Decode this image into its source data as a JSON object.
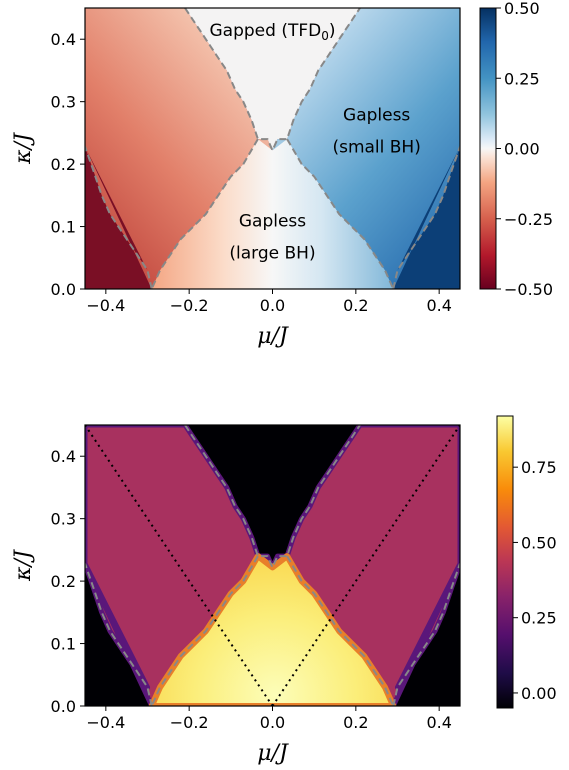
{
  "chart_data": [
    {
      "type": "heatmap",
      "xlabel": "μ/J",
      "ylabel": "κ/J",
      "xlim": [
        -0.45,
        0.45
      ],
      "ylim": [
        0,
        0.45
      ],
      "xticks": [
        -0.4,
        -0.2,
        0.0,
        0.2,
        0.4
      ],
      "xtick_labels": [
        "−0.4",
        "−0.2",
        "0.0",
        "0.2",
        "0.4"
      ],
      "yticks": [
        0.0,
        0.1,
        0.2,
        0.3,
        0.4
      ],
      "ytick_labels": [
        "0.0",
        "0.1",
        "0.2",
        "0.3",
        "0.4"
      ],
      "colormap": "RdBu",
      "colorbar": {
        "range": [
          -0.5,
          0.5
        ],
        "ticks": [
          -0.5,
          -0.25,
          0.0,
          0.25,
          0.5
        ],
        "tick_labels": [
          "−0.50",
          "−0.25",
          "0.00",
          "0.25",
          "0.50"
        ]
      },
      "boundary_style": "dashed gray",
      "regions": [
        {
          "label": "Gapped (TFD",
          "subscript": "0",
          "suffix": ")",
          "mu": 0.0,
          "kappa": 0.405
        },
        {
          "label": "Gapless",
          "label2": "(small BH)",
          "mu": 0.25,
          "kappa": 0.27
        },
        {
          "label": "Gapless",
          "label2": "(large BH)",
          "mu": 0.0,
          "kappa": 0.1
        }
      ]
    },
    {
      "type": "heatmap",
      "xlabel": "μ/J",
      "ylabel": "κ/J",
      "xlim": [
        -0.45,
        0.45
      ],
      "ylim": [
        0,
        0.45
      ],
      "xticks": [
        -0.4,
        -0.2,
        0.0,
        0.2,
        0.4
      ],
      "xtick_labels": [
        "−0.4",
        "−0.2",
        "0.0",
        "0.2",
        "0.4"
      ],
      "yticks": [
        0.0,
        0.1,
        0.2,
        0.3,
        0.4
      ],
      "ytick_labels": [
        "0.0",
        "0.1",
        "0.2",
        "0.3",
        "0.4"
      ],
      "colormap": "inferno",
      "colorbar": {
        "range": [
          -0.05,
          0.92
        ],
        "ticks": [
          0.0,
          0.25,
          0.5,
          0.75
        ],
        "tick_labels": [
          "0.00",
          "0.25",
          "0.50",
          "0.75"
        ]
      },
      "boundary_style": "dashed gray",
      "dotted_lines": [
        {
          "from": [
            -0.45,
            0.45
          ],
          "to": [
            0.0,
            0.0
          ]
        },
        {
          "from": [
            0.0,
            0.0
          ],
          "to": [
            0.45,
            0.45
          ]
        }
      ]
    }
  ],
  "phase_boundary": {
    "gapped_bottom_kappa_at_zero": 0.222,
    "gapped_notch_kappa": 0.24,
    "gapped_notch_mu": 0.035,
    "gapped_top_mu_at_kappa_max": 0.21,
    "large_bh_foot_mu": 0.29,
    "small_bh_outer_top_kappa": 0.228
  }
}
